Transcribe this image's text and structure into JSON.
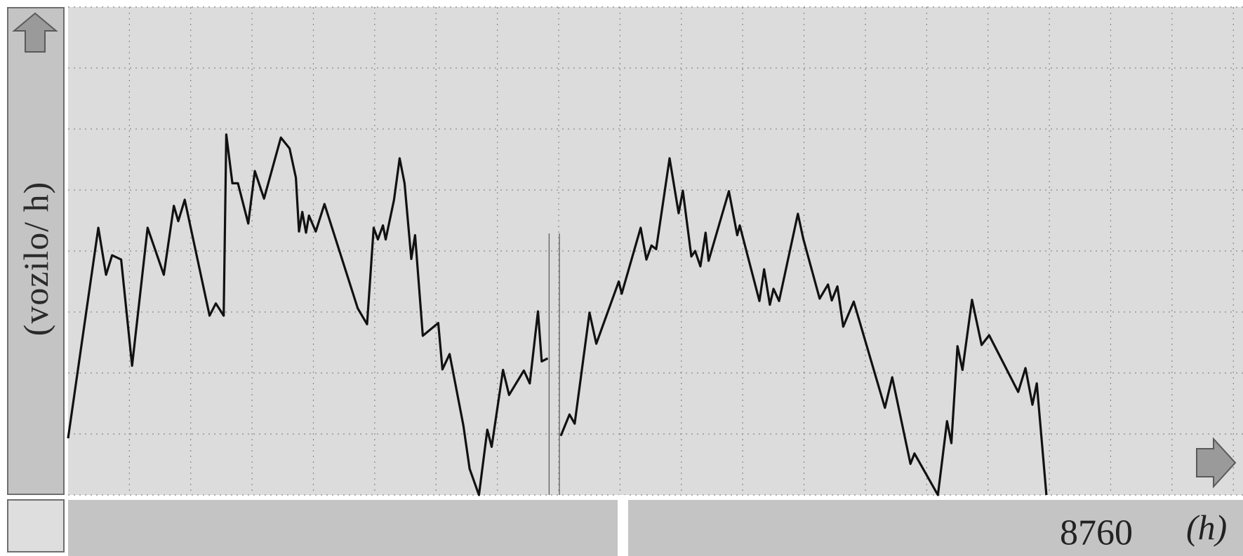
{
  "chart_data": {
    "type": "line",
    "title": "",
    "ylabel": "(vozilo/ h)",
    "xlabel": "(h)",
    "x_tick_labels": [
      "8760"
    ],
    "xlim": [
      0,
      8760
    ],
    "ylim": [
      0,
      8
    ],
    "grid": true,
    "legend": "none",
    "line_color": "#111111",
    "series": [
      {
        "values": [
          [
            0.0,
            0.93
          ],
          [
            257.0,
            4.38
          ],
          [
            323.0,
            3.61
          ],
          [
            374.0,
            3.93
          ],
          [
            451.0,
            3.86
          ],
          [
            544.0,
            2.12
          ],
          [
            676.0,
            4.38
          ],
          [
            814.0,
            3.61
          ],
          [
            899.0,
            4.74
          ],
          [
            937.0,
            4.49
          ],
          [
            992.0,
            4.84
          ],
          [
            1203.0,
            2.94
          ],
          [
            1256.0,
            3.14
          ],
          [
            1323.0,
            2.94
          ],
          [
            1345.0,
            5.91
          ],
          [
            1397.0,
            5.11
          ],
          [
            1444.0,
            5.11
          ],
          [
            1532.0,
            4.45
          ],
          [
            1588.0,
            5.31
          ],
          [
            1666.0,
            4.86
          ],
          [
            1809.0,
            5.86
          ],
          [
            1883.0,
            5.68
          ],
          [
            1937.0,
            5.2
          ],
          [
            1963.0,
            4.32
          ],
          [
            1991.0,
            4.64
          ],
          [
            2023.0,
            4.3
          ],
          [
            2048.0,
            4.58
          ],
          [
            2106.0,
            4.32
          ],
          [
            2180.0,
            4.77
          ],
          [
            2463.0,
            3.06
          ],
          [
            2542.0,
            2.8
          ],
          [
            2598.0,
            4.38
          ],
          [
            2634.0,
            4.19
          ],
          [
            2677.0,
            4.42
          ],
          [
            2700.0,
            4.19
          ],
          [
            2771.0,
            4.84
          ],
          [
            2819.0,
            5.52
          ],
          [
            2861.0,
            5.11
          ],
          [
            2918.0,
            3.87
          ],
          [
            2950.0,
            4.26
          ],
          [
            3016.0,
            2.61
          ],
          [
            3147.0,
            2.82
          ],
          [
            3183.0,
            2.06
          ],
          [
            3244.0,
            2.31
          ],
          [
            3361.0,
            1.14
          ],
          [
            3414.0,
            0.43
          ],
          [
            3493.0,
            0.0
          ],
          [
            3564.0,
            1.07
          ],
          [
            3601.0,
            0.79
          ],
          [
            3698.0,
            2.05
          ],
          [
            3749.0,
            1.64
          ],
          [
            3875.0,
            2.04
          ],
          [
            3925.0,
            1.83
          ],
          [
            3995.0,
            3.01
          ],
          [
            4027.0,
            2.19
          ],
          [
            4078.0,
            2.24
          ],
          [
            4189.0,
            0.97
          ],
          [
            4263.0,
            1.32
          ],
          [
            4307.0,
            1.17
          ],
          [
            4433.0,
            2.99
          ],
          [
            4491.0,
            2.48
          ],
          [
            4682.0,
            3.5
          ],
          [
            4707.0,
            3.3
          ],
          [
            4868.0,
            4.38
          ],
          [
            4917.0,
            3.86
          ],
          [
            4960.0,
            4.09
          ],
          [
            5000.0,
            4.03
          ],
          [
            5114.0,
            5.52
          ],
          [
            5191.0,
            4.62
          ],
          [
            5227.0,
            4.99
          ],
          [
            5299.0,
            3.91
          ],
          [
            5331.0,
            4.0
          ],
          [
            5376.0,
            3.75
          ],
          [
            5420.0,
            4.3
          ],
          [
            5446.0,
            3.84
          ],
          [
            5618.0,
            4.98
          ],
          [
            5689.0,
            4.26
          ],
          [
            5711.0,
            4.42
          ],
          [
            5878.0,
            3.18
          ],
          [
            5918.0,
            3.7
          ],
          [
            5967.0,
            3.12
          ],
          [
            5998.0,
            3.38
          ],
          [
            6045.0,
            3.18
          ],
          [
            6205.0,
            4.61
          ],
          [
            6251.0,
            4.2
          ],
          [
            6390.0,
            3.22
          ],
          [
            6461.0,
            3.45
          ],
          [
            6493.0,
            3.19
          ],
          [
            6541.0,
            3.42
          ],
          [
            6590.0,
            2.76
          ],
          [
            6680.0,
            3.17
          ],
          [
            6945.0,
            1.43
          ],
          [
            7007.0,
            1.93
          ],
          [
            7162.0,
            0.51
          ],
          [
            7196.0,
            0.68
          ],
          [
            7395.0,
            0.0
          ],
          [
            7473.0,
            1.21
          ],
          [
            7510.0,
            0.85
          ],
          [
            7562.0,
            2.44
          ],
          [
            7604.0,
            2.05
          ],
          [
            7685.0,
            3.2
          ],
          [
            7767.0,
            2.46
          ],
          [
            7831.0,
            2.62
          ],
          [
            8078.0,
            1.69
          ],
          [
            8140.0,
            2.08
          ],
          [
            8199.0,
            1.48
          ],
          [
            8236.0,
            1.83
          ],
          [
            8318.0,
            0.0
          ]
        ]
      }
    ],
    "gap_between": [
      4078.0,
      4189.0
    ]
  }
}
